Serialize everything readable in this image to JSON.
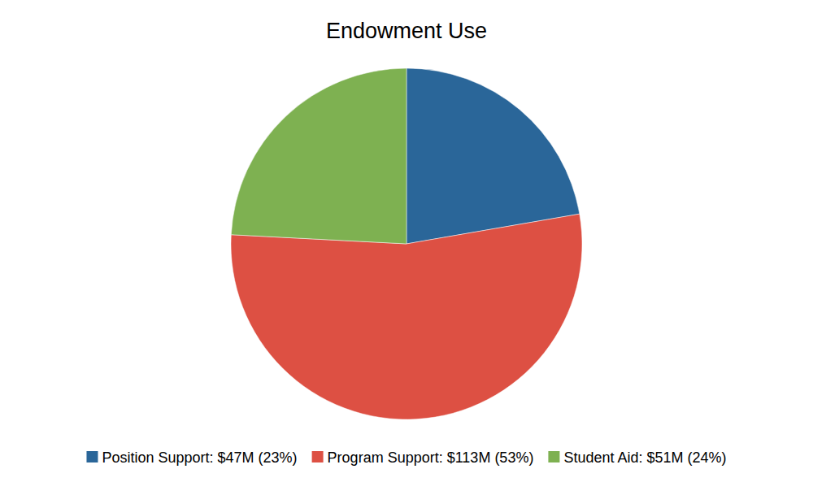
{
  "chart_data": {
    "type": "pie",
    "title": "Endowment Use",
    "categories": [
      "Position Support: $47M (23%)",
      "Program Support: $113M (53%)",
      "Student Aid: $51M (24%)"
    ],
    "values": [
      47,
      113,
      51
    ],
    "colors": [
      "#2a6699",
      "#dd5043",
      "#7eb151"
    ],
    "legend": "bottom"
  }
}
